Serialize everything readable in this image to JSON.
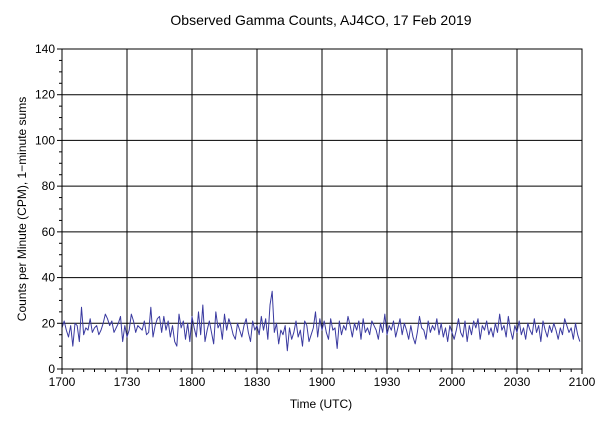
{
  "chart_data": {
    "type": "line",
    "title": "Observed Gamma Counts, AJ4CO, 17 Feb 2019",
    "xlabel": "Time (UTC)",
    "ylabel": "Counts per Minute (CPM), 1−minute sums",
    "xlim": [
      0,
      240
    ],
    "ylim": [
      0,
      140
    ],
    "x_ticks": [
      {
        "value": 0,
        "label": "1700"
      },
      {
        "value": 30,
        "label": "1730"
      },
      {
        "value": 60,
        "label": "1800"
      },
      {
        "value": 90,
        "label": "1830"
      },
      {
        "value": 120,
        "label": "1900"
      },
      {
        "value": 150,
        "label": "1930"
      },
      {
        "value": 180,
        "label": "2000"
      },
      {
        "value": 210,
        "label": "2030"
      },
      {
        "value": 240,
        "label": "2100"
      }
    ],
    "y_ticks": [
      0,
      20,
      40,
      60,
      80,
      100,
      120,
      140
    ],
    "grid": true,
    "series": [
      {
        "color": "#3a3aa0",
        "x_start": 0,
        "x_step": 1,
        "values": [
          18,
          21,
          17,
          14,
          19,
          10,
          20,
          19,
          12,
          27,
          15,
          18,
          17,
          22,
          16,
          18,
          19,
          15,
          17,
          20,
          24,
          22,
          19,
          21,
          16,
          18,
          20,
          23,
          12,
          19,
          14,
          17,
          24,
          21,
          16,
          19,
          18,
          17,
          21,
          15,
          16,
          27,
          14,
          19,
          22,
          23,
          16,
          23,
          17,
          21,
          14,
          19,
          12,
          10,
          24,
          18,
          21,
          13,
          20,
          12,
          23,
          18,
          14,
          25,
          15,
          28,
          12,
          17,
          21,
          16,
          11,
          25,
          18,
          20,
          13,
          24,
          17,
          22,
          19,
          15,
          13,
          20,
          17,
          14,
          19,
          22,
          16,
          12,
          21,
          17,
          19,
          15,
          23,
          17,
          22,
          13,
          28,
          34,
          16,
          20,
          11,
          17,
          15,
          19,
          8,
          18,
          13,
          16,
          21,
          14,
          17,
          10,
          21,
          19,
          12,
          15,
          18,
          25,
          14,
          22,
          17,
          21,
          16,
          13,
          22,
          17,
          18,
          9,
          21,
          15,
          19,
          17,
          23,
          19,
          14,
          20,
          17,
          21,
          13,
          22,
          16,
          18,
          15,
          21,
          19,
          17,
          13,
          20,
          16,
          24,
          15,
          19,
          17,
          21,
          14,
          18,
          22,
          15,
          20,
          17,
          13,
          19,
          14,
          11,
          16,
          23,
          18,
          17,
          13,
          21,
          16,
          19,
          17,
          22,
          15,
          20,
          14,
          18,
          12,
          19,
          16,
          13,
          17,
          22,
          16,
          14,
          21,
          12,
          19,
          15,
          21,
          18,
          22,
          13,
          19,
          17,
          21,
          15,
          18,
          14,
          20,
          16,
          24,
          17,
          19,
          14,
          23,
          17,
          13,
          19,
          16,
          21,
          15,
          18,
          13,
          20,
          17,
          15,
          22,
          16,
          19,
          12,
          21,
          17,
          14,
          19,
          16,
          20,
          17,
          13,
          18,
          15,
          22,
          19,
          16,
          18,
          13,
          20,
          15,
          12
        ]
      }
    ]
  }
}
